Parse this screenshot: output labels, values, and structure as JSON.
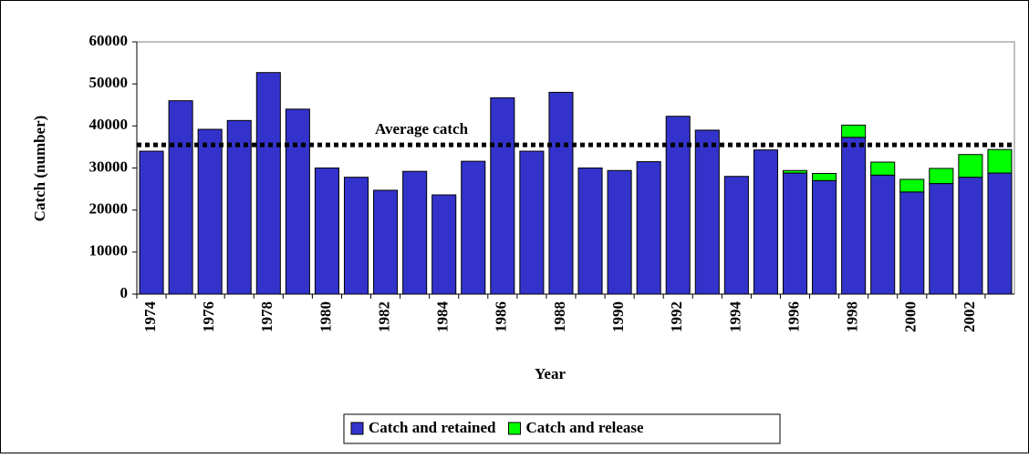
{
  "chart_data": {
    "type": "bar",
    "stacked": true,
    "x_label": "Year",
    "y_label": "Catch (number)",
    "categories": [
      "1974",
      null,
      "1976",
      null,
      "1978",
      null,
      "1980",
      null,
      "1982",
      null,
      "1984",
      null,
      "1986",
      null,
      "1988",
      null,
      "1990",
      null,
      "1992",
      null,
      "1994",
      null,
      "1996",
      null,
      "1998",
      null,
      "2000",
      null,
      "2002",
      null
    ],
    "series": [
      {
        "name": "Catch and retained",
        "color": "#3333cc",
        "values": [
          34000,
          46000,
          39200,
          41300,
          52700,
          44000,
          30000,
          27800,
          24700,
          29200,
          23600,
          31600,
          46700,
          34000,
          48000,
          30000,
          29400,
          31500,
          42300,
          39000,
          28000,
          34300,
          28800,
          27000,
          37300,
          28300,
          24300,
          26300,
          27800,
          28800
        ]
      },
      {
        "name": "Catch and release",
        "color": "#00ff00",
        "values": [
          0,
          0,
          0,
          0,
          0,
          0,
          0,
          0,
          0,
          0,
          0,
          0,
          0,
          0,
          0,
          0,
          0,
          0,
          0,
          0,
          0,
          0,
          600,
          1700,
          2900,
          3100,
          3000,
          3600,
          5400,
          5600
        ]
      }
    ],
    "average": {
      "label": "Average catch",
      "value": 35500
    },
    "ylim": [
      0,
      60000
    ],
    "yticks": [
      0,
      10000,
      20000,
      30000,
      40000,
      50000,
      60000
    ],
    "legend": "bottom"
  }
}
